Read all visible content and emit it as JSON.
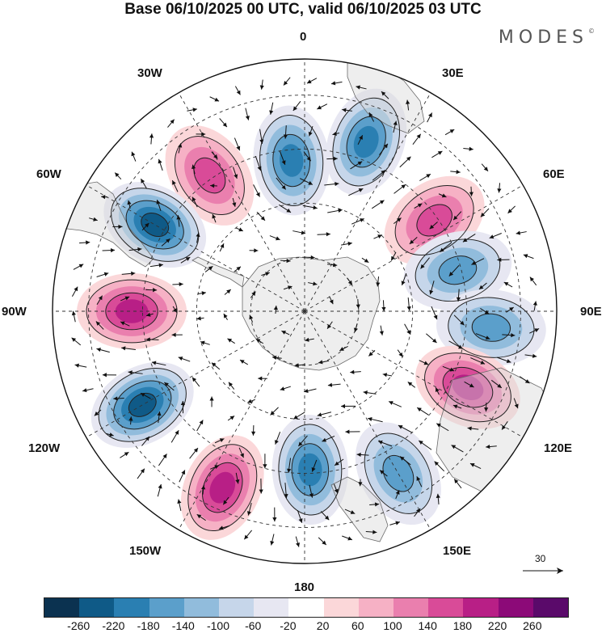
{
  "title": "Base 06/10/2025 00 UTC, valid 06/10/2025 03 UTC",
  "brand": "MODES",
  "brand_mark": "©",
  "longitude_labels": {
    "top": "0",
    "top_right": "30E",
    "right_upper": "60E",
    "right": "90E",
    "right_lower": "120E",
    "bottom_right": "150E",
    "bottom": "180",
    "bottom_left": "150W",
    "left_lower": "120W",
    "left": "90W",
    "left_upper": "60W",
    "top_left": "30W"
  },
  "reference_vector": {
    "value": "30",
    "icon": "arrow-right-icon"
  },
  "colorbar": {
    "ticks": [
      "-260",
      "-220",
      "-180",
      "-140",
      "-100",
      "-60",
      "-20",
      "20",
      "60",
      "100",
      "140",
      "180",
      "220",
      "260"
    ],
    "colors": [
      "#0b3250",
      "#0f5a87",
      "#2a7fb2",
      "#5b9fcb",
      "#91bcdc",
      "#c6d6ea",
      "#e7e7f2",
      "#ffffff",
      "#fbd7d9",
      "#f6b1c5",
      "#ea7fae",
      "#d94b98",
      "#b81f86",
      "#8c0a78",
      "#5a0a6a"
    ]
  },
  "anomaly_centers": [
    {
      "lon": 355,
      "lat": 42,
      "sign": -1,
      "level": 3
    },
    {
      "lon": 325,
      "lat": 46,
      "sign": 1,
      "level": 2
    },
    {
      "lon": 20,
      "lat": 50,
      "sign": -1,
      "level": 3
    },
    {
      "lon": 300,
      "lat": 48,
      "sign": -1,
      "level": 4
    },
    {
      "lon": 55,
      "lat": 44,
      "sign": 1,
      "level": 2
    },
    {
      "lon": 75,
      "lat": 44,
      "sign": -1,
      "level": 2
    },
    {
      "lon": 270,
      "lat": 48,
      "sign": 1,
      "level": 3
    },
    {
      "lon": 95,
      "lat": 52,
      "sign": -1,
      "level": 2
    },
    {
      "lon": 115,
      "lat": 50,
      "sign": 1,
      "level": 3
    },
    {
      "lon": 240,
      "lat": 52,
      "sign": -1,
      "level": 4
    },
    {
      "lon": 150,
      "lat": 52,
      "sign": -1,
      "level": 2
    },
    {
      "lon": 205,
      "lat": 54,
      "sign": 1,
      "level": 3
    },
    {
      "lon": 178,
      "lat": 44,
      "sign": -1,
      "level": 3
    }
  ]
}
